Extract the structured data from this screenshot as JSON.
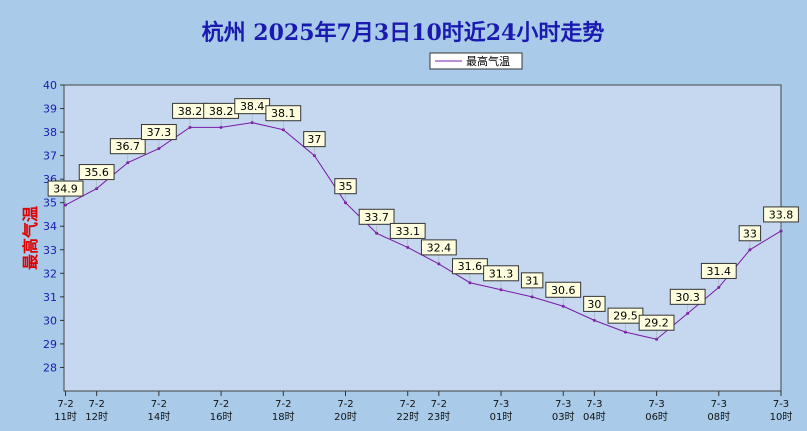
{
  "chart_data": {
    "type": "line",
    "title": "杭州 2025年7月3日10时近24小时走势",
    "ylabel": "最高气温",
    "xlabel": "",
    "legend": {
      "entries": [
        "最高气温"
      ],
      "placement": "top-right"
    },
    "ylim": [
      27,
      40
    ],
    "yticks": [
      28,
      29,
      30,
      31,
      32,
      33,
      34,
      35,
      36,
      37,
      38,
      39,
      40
    ],
    "grid": false,
    "series": [
      {
        "name": "最高气温",
        "color": "#7a1aa8",
        "points": [
          {
            "hour": 11,
            "value": 34.9
          },
          {
            "hour": 12,
            "value": 35.6
          },
          {
            "hour": 13,
            "value": 36.7
          },
          {
            "hour": 14,
            "value": 37.3
          },
          {
            "hour": 15,
            "value": 38.2
          },
          {
            "hour": 16,
            "value": 38.2
          },
          {
            "hour": 17,
            "value": 38.4
          },
          {
            "hour": 18,
            "value": 38.1
          },
          {
            "hour": 19,
            "value": 37
          },
          {
            "hour": 20,
            "value": 35
          },
          {
            "hour": 21,
            "value": 33.7
          },
          {
            "hour": 22,
            "value": 33.1
          },
          {
            "hour": 23,
            "value": 32.4
          },
          {
            "hour": 24,
            "value": 31.6
          },
          {
            "hour": 25,
            "value": 31.3
          },
          {
            "hour": 26,
            "value": 31
          },
          {
            "hour": 27,
            "value": 30.6
          },
          {
            "hour": 28,
            "value": 30
          },
          {
            "hour": 29,
            "value": 29.5
          },
          {
            "hour": 30,
            "value": 29.2
          },
          {
            "hour": 31,
            "value": 30.3
          },
          {
            "hour": 32,
            "value": 31.4
          },
          {
            "hour": 33,
            "value": 33
          },
          {
            "hour": 34,
            "value": 33.8
          }
        ]
      }
    ],
    "xticks": [
      {
        "hour": 11,
        "date": "7-2",
        "time": "11时"
      },
      {
        "hour": 12,
        "date": "7-2",
        "time": "12时"
      },
      {
        "hour": 14,
        "date": "7-2",
        "time": "14时"
      },
      {
        "hour": 16,
        "date": "7-2",
        "time": "16时"
      },
      {
        "hour": 18,
        "date": "7-2",
        "time": "18时"
      },
      {
        "hour": 20,
        "date": "7-2",
        "time": "20时"
      },
      {
        "hour": 22,
        "date": "7-2",
        "time": "22时"
      },
      {
        "hour": 23,
        "date": "7-2",
        "time": "23时"
      },
      {
        "hour": 25,
        "date": "7-3",
        "time": "01时"
      },
      {
        "hour": 27,
        "date": "7-3",
        "time": "03时"
      },
      {
        "hour": 28,
        "date": "7-3",
        "time": "04时"
      },
      {
        "hour": 30,
        "date": "7-3",
        "time": "06时"
      },
      {
        "hour": 32,
        "date": "7-3",
        "time": "08时"
      },
      {
        "hour": 34,
        "date": "7-3",
        "time": "10时"
      }
    ]
  }
}
